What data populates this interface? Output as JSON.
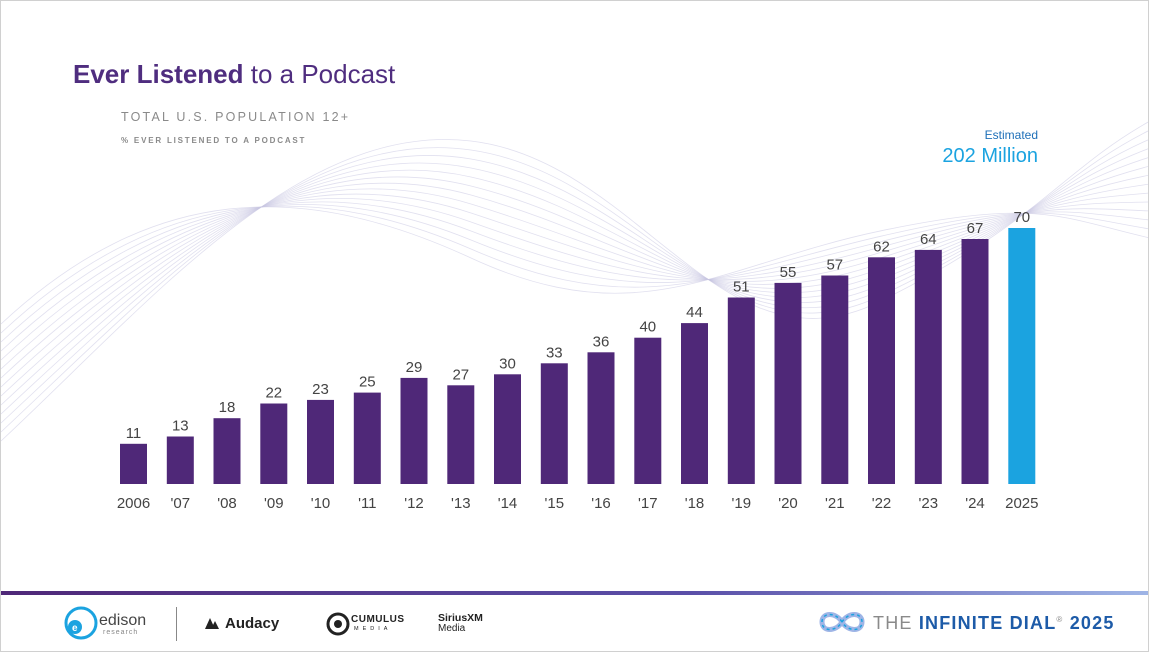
{
  "title": {
    "bold": "Ever Listened",
    "rest": " to a Podcast"
  },
  "subtitle": "TOTAL U.S. POPULATION 12+",
  "subsubtitle": "% EVER LISTENED TO A PODCAST",
  "estimate": {
    "label": "Estimated",
    "value": "202 Million"
  },
  "colors": {
    "bar": "#4f2878",
    "highlight": "#1ba3e0",
    "title": "#4f2d7f",
    "text": "#444444"
  },
  "chart_data": {
    "type": "bar",
    "categories": [
      "2006",
      "'07",
      "'08",
      "'09",
      "'10",
      "'11",
      "'12",
      "'13",
      "'14",
      "'15",
      "'16",
      "'17",
      "'18",
      "'19",
      "'20",
      "'21",
      "'22",
      "'23",
      "'24",
      "2025"
    ],
    "values": [
      11,
      13,
      18,
      22,
      23,
      25,
      29,
      27,
      30,
      33,
      36,
      40,
      44,
      51,
      55,
      57,
      62,
      64,
      67,
      70
    ],
    "highlight_index": 19,
    "ylim": [
      0,
      70
    ],
    "grid": false,
    "data_labels": true
  },
  "footer": {
    "edison": "edison",
    "edison_sub": "research",
    "audacy": "Audacy",
    "cumulus": "CUMULUS",
    "cumulus_sub": "MEDIA",
    "sirius": "SiriusXM",
    "sirius_sub": "Media",
    "dial_left": "THE ",
    "dial_accent": "INFINITE DIAL",
    "dial_tm": "®",
    "dial_year": " 2025",
    "icons": [
      "edison-logo-icon",
      "audacy-logo-icon",
      "cumulus-logo-icon",
      "infinity-icon"
    ]
  }
}
